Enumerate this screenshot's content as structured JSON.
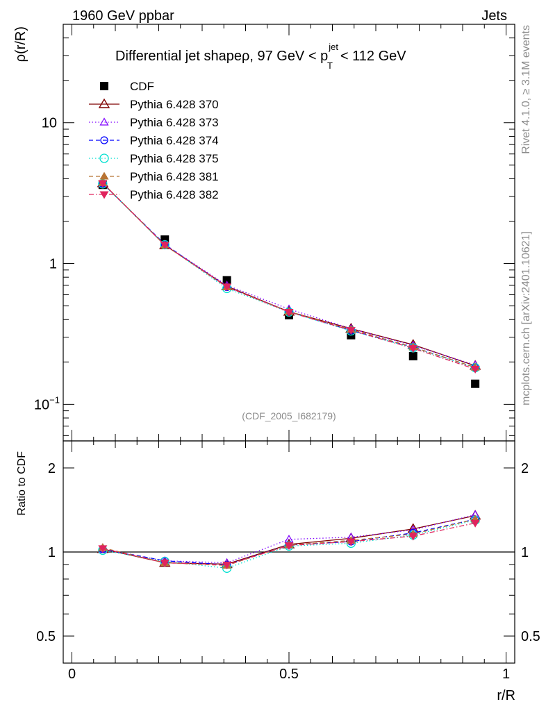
{
  "header": {
    "left": "1960 GeV ppbar",
    "right": "Jets"
  },
  "side_labels": {
    "rivet": "Rivet 4.1.0, ≥ 3.1M events",
    "mcplots": "mcplots.cern.ch [arXiv:2401.10621]"
  },
  "analysis_id": "(CDF_2005_I682179)",
  "colors": {
    "cdf": "#000000",
    "p370": "#7f0000",
    "p373": "#7f00ff",
    "p374": "#0000ff",
    "p375": "#00e0d0",
    "p381": "#b87333",
    "p382": "#e0245e"
  },
  "chart_data": [
    {
      "type": "line",
      "title": "Differential jet shapeρ, 97 GeV < p",
      "title_sup": "jet",
      "title_sub": "T",
      "title_end": "< 112 GeV",
      "xlabel": "r/R",
      "ylabel": "ρ(r/R)",
      "yscale": "log",
      "xlim": [
        -0.02,
        1.02
      ],
      "ylim": [
        0.055,
        50
      ],
      "yticks": [
        {
          "value": 10,
          "label": "10"
        },
        {
          "value": 1,
          "label": "1"
        },
        {
          "value": 0.1,
          "label": "10",
          "sup": "−1"
        }
      ],
      "x": [
        0.071,
        0.214,
        0.357,
        0.5,
        0.643,
        0.786,
        0.929
      ],
      "series": [
        {
          "name": "CDF",
          "key": "cdf",
          "marker": "square",
          "line": "none",
          "values": [
            3.62,
            1.48,
            0.76,
            0.43,
            0.31,
            0.22,
            0.14
          ]
        },
        {
          "name": "Pythia 6.428 370",
          "key": "p370",
          "marker": "triangle-open",
          "line": "solid",
          "values": [
            3.72,
            1.35,
            0.69,
            0.455,
            0.345,
            0.265,
            0.188
          ]
        },
        {
          "name": "Pythia 6.428 373",
          "key": "p373",
          "marker": "triangle-open-small",
          "line": "dotted",
          "values": [
            3.7,
            1.36,
            0.7,
            0.475,
            0.345,
            0.262,
            0.19
          ]
        },
        {
          "name": "Pythia 6.428 374",
          "key": "p374",
          "marker": "circle-open",
          "line": "dashed",
          "values": [
            3.7,
            1.37,
            0.68,
            0.455,
            0.335,
            0.255,
            0.183
          ]
        },
        {
          "name": "Pythia 6.428 375",
          "key": "p375",
          "marker": "circle-open-large",
          "line": "dotted",
          "values": [
            3.68,
            1.36,
            0.665,
            0.452,
            0.332,
            0.252,
            0.182
          ]
        },
        {
          "name": "Pythia 6.428 381",
          "key": "p381",
          "marker": "triangle-filled",
          "line": "dashed",
          "values": [
            3.74,
            1.35,
            0.68,
            0.455,
            0.34,
            0.255,
            0.183
          ]
        },
        {
          "name": "Pythia 6.428 382",
          "key": "p382",
          "marker": "triangle-down-filled",
          "line": "dashdot",
          "values": [
            3.72,
            1.355,
            0.685,
            0.452,
            0.336,
            0.25,
            0.178
          ]
        }
      ]
    },
    {
      "type": "line",
      "title": "",
      "xlabel": "r/R",
      "ylabel": "Ratio to CDF",
      "yscale": "log",
      "xlim": [
        -0.02,
        1.02
      ],
      "ylim": [
        0.4,
        2.5
      ],
      "yticks": [
        {
          "value": 2,
          "label": "2"
        },
        {
          "value": 1,
          "label": "1"
        },
        {
          "value": 0.5,
          "label": "0.5"
        }
      ],
      "xticks": [
        {
          "value": 0,
          "label": "0"
        },
        {
          "value": 0.5,
          "label": "0.5"
        },
        {
          "value": 1,
          "label": "1"
        }
      ],
      "reference": 1,
      "x": [
        0.071,
        0.214,
        0.357,
        0.5,
        0.643,
        0.786,
        0.929
      ],
      "series": [
        {
          "name": "Pythia 6.428 370",
          "key": "p370",
          "marker": "triangle-open",
          "line": "solid",
          "values": [
            1.025,
            0.915,
            0.905,
            1.065,
            1.12,
            1.21,
            1.35
          ]
        },
        {
          "name": "Pythia 6.428 373",
          "key": "p373",
          "marker": "triangle-open-small",
          "line": "dotted",
          "values": [
            1.02,
            0.93,
            0.915,
            1.11,
            1.13,
            1.2,
            1.36
          ]
        },
        {
          "name": "Pythia 6.428 374",
          "key": "p374",
          "marker": "circle-open",
          "line": "dashed",
          "values": [
            1.025,
            0.93,
            0.9,
            1.06,
            1.09,
            1.17,
            1.31
          ]
        },
        {
          "name": "Pythia 6.428 375",
          "key": "p375",
          "marker": "circle-open-large",
          "line": "dotted",
          "values": [
            1.015,
            0.925,
            0.875,
            1.05,
            1.075,
            1.15,
            1.3
          ]
        },
        {
          "name": "Pythia 6.428 381",
          "key": "p381",
          "marker": "triangle-filled",
          "line": "dashed",
          "values": [
            1.035,
            0.915,
            0.895,
            1.06,
            1.1,
            1.16,
            1.31
          ]
        },
        {
          "name": "Pythia 6.428 382",
          "key": "p382",
          "marker": "triangle-down-filled",
          "line": "dashdot",
          "values": [
            1.03,
            0.915,
            0.9,
            1.055,
            1.09,
            1.14,
            1.27
          ]
        }
      ]
    }
  ]
}
